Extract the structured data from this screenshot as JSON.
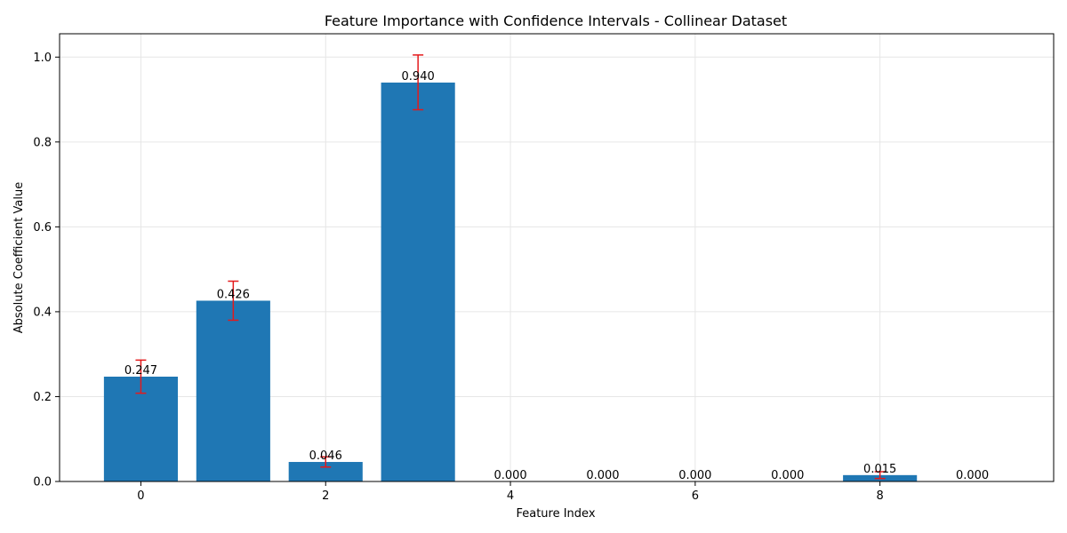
{
  "chart_data": {
    "type": "bar",
    "title": "Feature Importance with Confidence Intervals - Collinear Dataset",
    "xlabel": "Feature Index",
    "ylabel": "Absolute Coefficient Value",
    "categories": [
      0,
      1,
      2,
      3,
      4,
      5,
      6,
      7,
      8,
      9
    ],
    "values": [
      0.247,
      0.426,
      0.046,
      0.94,
      0.0,
      0.0,
      0.0,
      0.0,
      0.015,
      0.0
    ],
    "value_labels": [
      "0.247",
      "0.426",
      "0.046",
      "0.940",
      "0.000",
      "0.000",
      "0.000",
      "0.000",
      "0.015",
      "0.000"
    ],
    "error_low": [
      0.208,
      0.38,
      0.034,
      0.876,
      0.0,
      0.0,
      0.0,
      0.0,
      0.007,
      0.0
    ],
    "error_high": [
      0.286,
      0.472,
      0.058,
      1.005,
      0.0,
      0.0,
      0.0,
      0.0,
      0.023,
      0.0
    ],
    "xlim": [
      -0.88,
      9.88
    ],
    "ylim": [
      0,
      1.055
    ],
    "xticks": [
      0,
      2,
      4,
      6,
      8
    ],
    "yticks": [
      0.0,
      0.2,
      0.4,
      0.6,
      0.8,
      1.0
    ],
    "ytick_labels": [
      "0.0",
      "0.2",
      "0.4",
      "0.6",
      "0.8",
      "1.0"
    ],
    "grid": true,
    "colors": {
      "bar": "#1f77b4",
      "error": "#e41a1c",
      "grid": "#e6e6e6"
    }
  }
}
